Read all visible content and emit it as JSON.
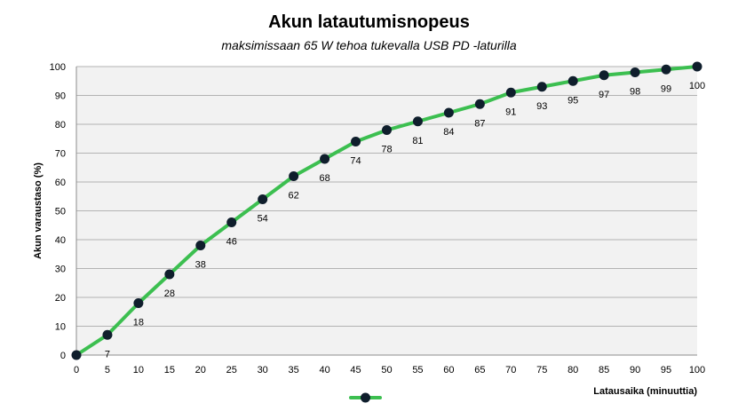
{
  "chart_data": {
    "type": "line",
    "title": "Akun latautumisnopeus",
    "subtitle": "maksimissaan 65 W tehoa tukevalla USB PD -laturilla",
    "xlabel": "Latausaika (minuuttia)",
    "ylabel": "Akun varaustaso (%)",
    "xlim": [
      0,
      100
    ],
    "ylim": [
      0,
      100
    ],
    "x_ticks": [
      0,
      5,
      10,
      15,
      20,
      25,
      30,
      35,
      40,
      45,
      50,
      55,
      60,
      65,
      70,
      75,
      80,
      85,
      90,
      95,
      100
    ],
    "y_ticks": [
      0,
      10,
      20,
      30,
      40,
      50,
      60,
      70,
      80,
      90,
      100
    ],
    "grid": "horizontal",
    "legend": "bottom",
    "series": [
      {
        "x": [
          0,
          5,
          10,
          15,
          20,
          25,
          30,
          35,
          40,
          45,
          50,
          55,
          60,
          65,
          70,
          75,
          80,
          85,
          90,
          95,
          100
        ],
        "values": [
          0,
          7,
          18,
          28,
          38,
          46,
          54,
          62,
          68,
          74,
          78,
          81,
          84,
          87,
          91,
          93,
          95,
          97,
          98,
          99,
          100
        ],
        "data_labels": [
          "",
          "7",
          "18",
          "28",
          "38",
          "46",
          "54",
          "62",
          "68",
          "74",
          "78",
          "81",
          "84",
          "87",
          "91",
          "93",
          "95",
          "97",
          "98",
          "99",
          "100"
        ],
        "line_color": "#3cbf50",
        "marker_color": "#0f1e2c"
      }
    ],
    "plot_background": "#f2f2f2",
    "gridline_color": "#b3b3b3"
  }
}
